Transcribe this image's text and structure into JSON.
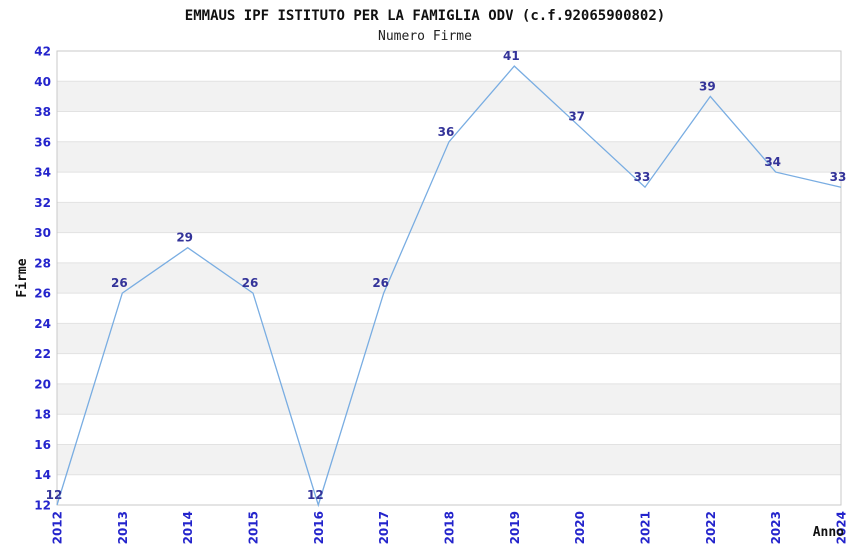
{
  "chart_data": {
    "type": "line",
    "title": "EMMAUS IPF ISTITUTO PER LA FAMIGLIA ODV (c.f.92065900802)",
    "subtitle": "Numero Firme",
    "xlabel": "Anno",
    "ylabel": "Firme",
    "x": [
      2012,
      2013,
      2014,
      2015,
      2016,
      2017,
      2018,
      2019,
      2020,
      2021,
      2022,
      2023,
      2024
    ],
    "series": [
      {
        "name": "Numero Firme",
        "values": [
          12,
          26,
          29,
          26,
          12,
          26,
          36,
          41,
          37,
          33,
          39,
          34,
          33
        ]
      }
    ],
    "point_labels_shown": true,
    "ylim": [
      12,
      42
    ],
    "yticks": [
      12,
      14,
      16,
      18,
      20,
      22,
      24,
      26,
      28,
      30,
      32,
      34,
      36,
      38,
      40,
      42
    ],
    "grid": "horizontal-bands",
    "legend_position": "none",
    "colors": {
      "line": "#79ade2",
      "tick_label": "#2424cc",
      "point_label": "#333399",
      "band_fill": "#f2f2f2",
      "gridline": "#e2e2e2",
      "plot_border": "#c9c9c9",
      "axis_title": "#111111",
      "background": "#ffffff"
    }
  }
}
